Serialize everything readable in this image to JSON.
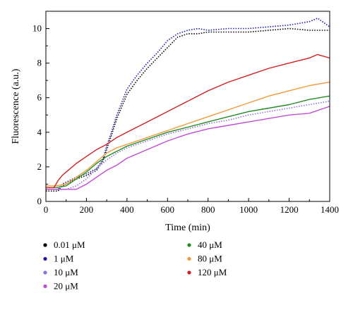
{
  "chart_data": {
    "type": "line",
    "xlabel": "Time (min)",
    "ylabel": "Fluorescence (a.u.)",
    "xlim": [
      0,
      1400
    ],
    "ylim": [
      0,
      11
    ],
    "xticks": [
      0,
      200,
      400,
      600,
      800,
      1000,
      1200,
      1400
    ],
    "yticks": [
      0,
      2,
      4,
      6,
      8,
      10
    ],
    "grid": false,
    "legend_position": "bottom",
    "series": [
      {
        "name": "0.01 μM",
        "color": "#000000",
        "style": "dotted",
        "x": [
          0,
          60,
          80,
          150,
          200,
          250,
          280,
          300,
          320,
          350,
          400,
          450,
          500,
          550,
          600,
          650,
          700,
          750,
          800,
          900,
          1000,
          1100,
          1200,
          1300,
          1400
        ],
        "y": [
          0.6,
          0.6,
          0.9,
          1.3,
          1.5,
          1.8,
          2.3,
          3.0,
          3.7,
          4.8,
          6.2,
          7.0,
          7.7,
          8.3,
          8.9,
          9.5,
          9.7,
          9.7,
          9.8,
          9.8,
          9.8,
          9.9,
          10.0,
          9.9,
          9.9
        ]
      },
      {
        "name": "1 μM",
        "color": "#1a1aaa",
        "style": "dotted",
        "x": [
          0,
          60,
          80,
          150,
          200,
          250,
          280,
          300,
          320,
          350,
          400,
          450,
          500,
          550,
          600,
          650,
          700,
          750,
          800,
          900,
          1000,
          1100,
          1200,
          1300,
          1340,
          1400
        ],
        "y": [
          0.7,
          0.7,
          1.0,
          1.4,
          1.6,
          1.9,
          2.4,
          3.2,
          3.9,
          5.0,
          6.5,
          7.3,
          8.0,
          8.6,
          9.3,
          9.7,
          9.9,
          10.0,
          9.9,
          10.0,
          10.0,
          10.1,
          10.2,
          10.4,
          10.6,
          10.1
        ]
      },
      {
        "name": "10 μM",
        "color": "#9370db",
        "style": "dotted",
        "x": [
          0,
          100,
          150,
          200,
          250,
          300,
          350,
          400,
          500,
          600,
          700,
          800,
          900,
          1000,
          1100,
          1200,
          1300,
          1400
        ],
        "y": [
          0.7,
          0.7,
          0.9,
          1.3,
          1.9,
          2.4,
          2.8,
          3.1,
          3.5,
          3.9,
          4.2,
          4.5,
          4.7,
          5.0,
          5.2,
          5.4,
          5.6,
          5.8
        ]
      },
      {
        "name": "20 μM",
        "color": "#c24ad6",
        "style": "solid",
        "x": [
          0,
          150,
          200,
          250,
          300,
          350,
          400,
          500,
          600,
          700,
          800,
          900,
          1000,
          1100,
          1200,
          1300,
          1400
        ],
        "y": [
          0.7,
          0.7,
          1.0,
          1.4,
          1.8,
          2.1,
          2.5,
          3.0,
          3.5,
          3.9,
          4.2,
          4.4,
          4.6,
          4.8,
          5.0,
          5.1,
          5.5
        ]
      },
      {
        "name": "40 μM",
        "color": "#228b22",
        "style": "solid",
        "x": [
          0,
          50,
          100,
          150,
          200,
          250,
          300,
          350,
          400,
          500,
          600,
          700,
          800,
          900,
          1000,
          1100,
          1200,
          1300,
          1400
        ],
        "y": [
          0.8,
          0.8,
          0.9,
          1.3,
          1.7,
          2.2,
          2.6,
          2.9,
          3.2,
          3.6,
          4.0,
          4.3,
          4.6,
          4.9,
          5.2,
          5.4,
          5.6,
          5.9,
          6.1
        ]
      },
      {
        "name": "80 μM",
        "color": "#f29a3a",
        "style": "solid",
        "x": [
          0,
          50,
          100,
          150,
          200,
          250,
          300,
          350,
          400,
          500,
          600,
          700,
          800,
          900,
          1000,
          1100,
          1200,
          1300,
          1400
        ],
        "y": [
          0.9,
          0.9,
          1.0,
          1.4,
          1.8,
          2.3,
          2.8,
          3.1,
          3.3,
          3.7,
          4.1,
          4.5,
          4.9,
          5.3,
          5.7,
          6.1,
          6.4,
          6.7,
          6.9
        ]
      },
      {
        "name": "120 μM",
        "color": "#d02020",
        "style": "solid",
        "x": [
          0,
          40,
          60,
          80,
          100,
          150,
          200,
          250,
          300,
          350,
          400,
          500,
          600,
          700,
          800,
          900,
          1000,
          1100,
          1200,
          1300,
          1340,
          1400
        ],
        "y": [
          0.8,
          0.8,
          1.2,
          1.5,
          1.7,
          2.2,
          2.6,
          3.0,
          3.3,
          3.7,
          4.0,
          4.6,
          5.2,
          5.8,
          6.4,
          6.9,
          7.3,
          7.7,
          8.0,
          8.3,
          8.5,
          8.3
        ]
      }
    ]
  }
}
